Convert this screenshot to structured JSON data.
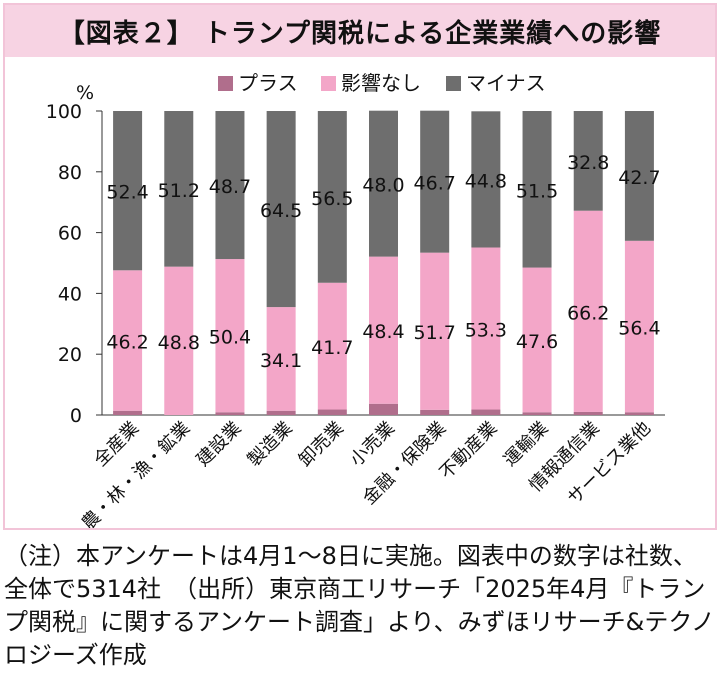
{
  "title": "【図表２】 トランプ関税による企業業績への影響",
  "note": "（注）本アンケートは4月1～8日に実施。図表中の数字は社数、全体で5314社　（出所）東京商工リサーチ「2025年4月『トランプ関税』に関するアンケート調査」より、みずほリサーチ&テクノロジーズ作成",
  "chart_data": {
    "type": "bar",
    "stacked": true,
    "ylabel": "%",
    "ylim": [
      0,
      100
    ],
    "yticks": [
      0,
      20,
      40,
      60,
      80,
      100
    ],
    "legend_position": "top",
    "categories": [
      "全産業",
      "農・林・漁・鉱業",
      "建設業",
      "製造業",
      "卸売業",
      "小売業",
      "金融・保険業",
      "不動産業",
      "運輸業",
      "情報通信業",
      "サービス業他"
    ],
    "series": [
      {
        "name": "プラス",
        "color": "#b06e8c",
        "values": [
          1.4,
          0.0,
          0.9,
          1.4,
          1.8,
          3.7,
          1.7,
          1.8,
          0.9,
          1.0,
          0.9
        ]
      },
      {
        "name": "影響なし",
        "color": "#f3a6c8",
        "values": [
          46.2,
          48.8,
          50.4,
          34.1,
          41.7,
          48.4,
          51.7,
          53.3,
          47.6,
          66.2,
          56.4
        ]
      },
      {
        "name": "マイナス",
        "color": "#6e6e6e",
        "values": [
          52.4,
          51.2,
          48.7,
          64.5,
          56.5,
          48.0,
          46.7,
          44.8,
          51.5,
          32.8,
          42.7
        ]
      }
    ]
  }
}
